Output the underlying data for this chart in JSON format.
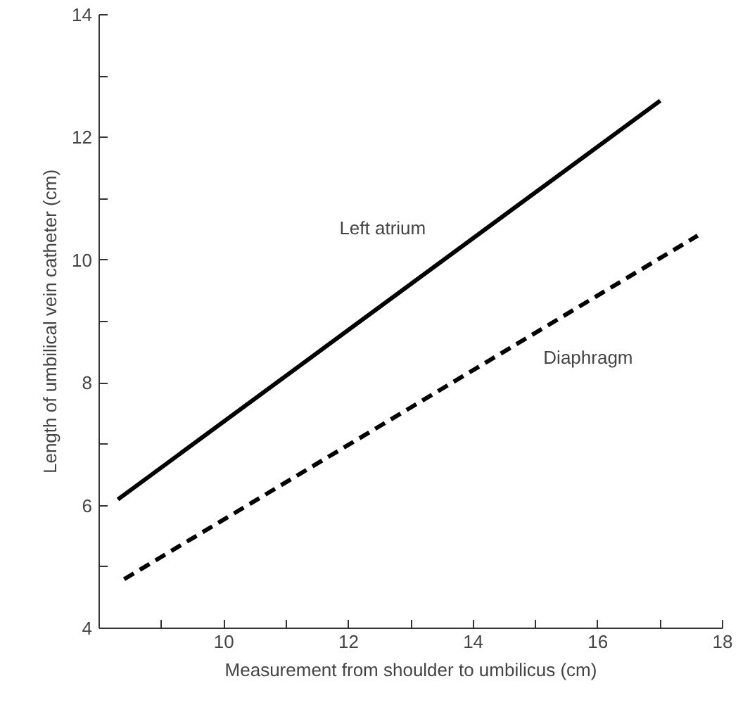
{
  "chart_data": {
    "type": "line",
    "xlabel": "Measurement from shoulder to umbilicus (cm)",
    "ylabel": "Length of umbilical vein catheter (cm)",
    "xlim": [
      8,
      18
    ],
    "ylim": [
      4,
      14
    ],
    "xticks": [
      {
        "value": 9,
        "label": null
      },
      10,
      {
        "value": 11,
        "label": null
      },
      12,
      {
        "value": 13,
        "label": null
      },
      14,
      {
        "value": 15,
        "label": null
      },
      16,
      {
        "value": 17,
        "label": null
      },
      18
    ],
    "yticks": [
      4,
      {
        "value": 5,
        "label": null
      },
      6,
      {
        "value": 7,
        "label": null
      },
      8,
      {
        "value": 9,
        "label": null
      },
      10,
      {
        "value": 11,
        "label": null
      },
      12,
      {
        "value": 13,
        "label": null
      },
      14
    ],
    "grid": false,
    "legend": false,
    "marker": "none",
    "series": [
      {
        "name": "Left atrium",
        "color": "#000000",
        "line_style": "solid",
        "x": [
          8.3,
          17.0
        ],
        "values": [
          6.1,
          12.6
        ]
      },
      {
        "name": "Diaphragm",
        "color": "#000000",
        "line_style": "dashed",
        "x": [
          8.4,
          17.6
        ],
        "values": [
          4.8,
          10.4
        ]
      }
    ]
  }
}
